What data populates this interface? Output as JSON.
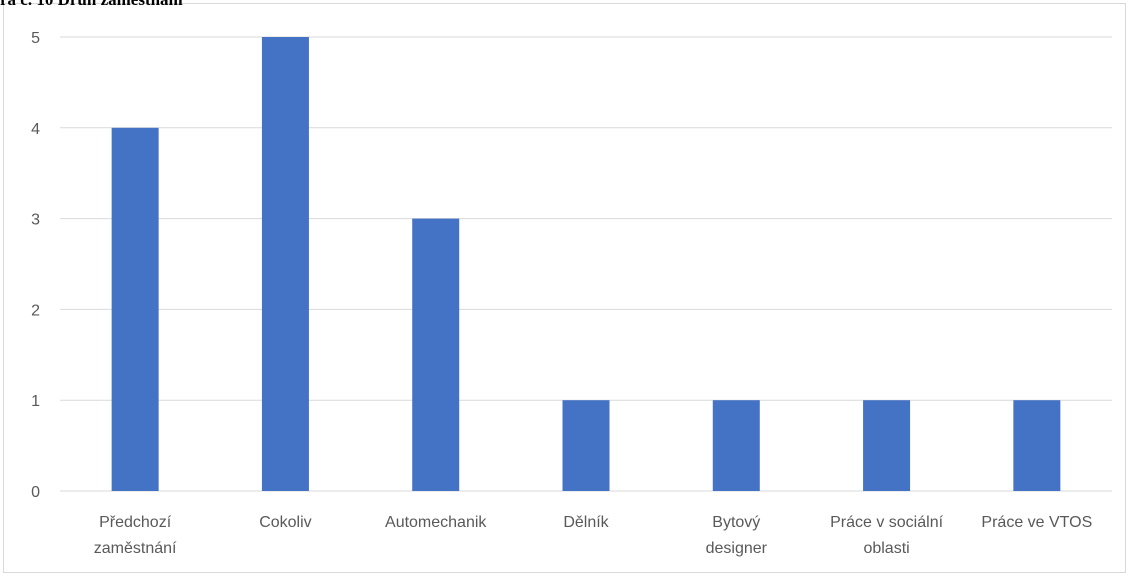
{
  "header": {
    "title_fragment": "ra č. 10 Druh zaměstnání"
  },
  "chart_data": {
    "type": "bar",
    "categories": [
      [
        "Předchozí",
        "zaměstnání"
      ],
      [
        "Cokoliv"
      ],
      [
        "Automechanik"
      ],
      [
        "Dělník"
      ],
      [
        "Bytový",
        "designer"
      ],
      [
        "Práce v sociální",
        "oblasti"
      ],
      [
        "Práce ve VTOS"
      ]
    ],
    "values": [
      4,
      5,
      3,
      1,
      1,
      1,
      1
    ],
    "ylim": [
      0,
      5
    ],
    "yticks": [
      0,
      1,
      2,
      3,
      4,
      5
    ],
    "grid": true,
    "bar_color": "#4472c4",
    "grid_color": "#d9d9d9"
  }
}
